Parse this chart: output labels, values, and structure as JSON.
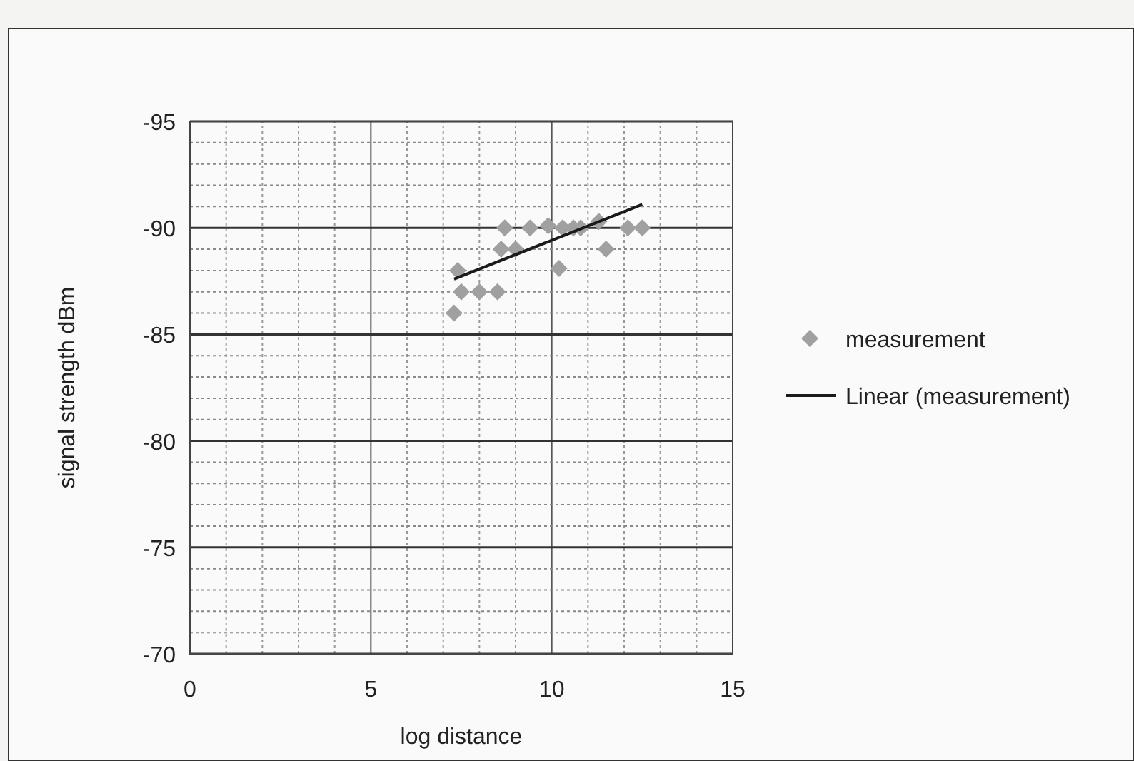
{
  "chart_data": {
    "type": "scatter",
    "xlabel": "log distance",
    "ylabel": "signal strength dBm",
    "xlim": [
      0,
      15
    ],
    "ylim": [
      -70,
      -95
    ],
    "xticks": [
      0,
      {
        "value": 1,
        "label": null
      },
      {
        "value": 2,
        "label": null
      },
      {
        "value": 3,
        "label": null
      },
      {
        "value": 4,
        "label": null
      },
      5,
      {
        "value": 6,
        "label": null
      },
      {
        "value": 7,
        "label": null
      },
      {
        "value": 8,
        "label": null
      },
      {
        "value": 9,
        "label": null
      },
      10,
      {
        "value": 11,
        "label": null
      },
      {
        "value": 12,
        "label": null
      },
      {
        "value": 13,
        "label": null
      },
      {
        "value": 14,
        "label": null
      },
      15
    ],
    "yticks": [
      -70,
      {
        "value": -71,
        "label": null
      },
      {
        "value": -72,
        "label": null
      },
      {
        "value": -73,
        "label": null
      },
      {
        "value": -74,
        "label": null
      },
      -75,
      {
        "value": -76,
        "label": null
      },
      {
        "value": -77,
        "label": null
      },
      {
        "value": -78,
        "label": null
      },
      {
        "value": -79,
        "label": null
      },
      -80,
      {
        "value": -81,
        "label": null
      },
      {
        "value": -82,
        "label": null
      },
      {
        "value": -83,
        "label": null
      },
      {
        "value": -84,
        "label": null
      },
      -85,
      {
        "value": -86,
        "label": null
      },
      {
        "value": -87,
        "label": null
      },
      {
        "value": -88,
        "label": null
      },
      {
        "value": -89,
        "label": null
      },
      -90,
      {
        "value": -91,
        "label": null
      },
      {
        "value": -92,
        "label": null
      },
      {
        "value": -93,
        "label": null
      },
      {
        "value": -94,
        "label": null
      },
      -95
    ],
    "grid": true,
    "legend": "right",
    "series": [
      {
        "name": "measurement",
        "marker": "diamond",
        "color": "#a0a0a0",
        "x": [
          7.3,
          7.4,
          7.5,
          8.0,
          8.5,
          8.6,
          9.0,
          8.7,
          9.4,
          9.9,
          10.2,
          10.3,
          10.6,
          10.8,
          11.3,
          11.5,
          12.1,
          12.5
        ],
        "values": [
          -86,
          -88,
          -87,
          -87,
          -87,
          -89,
          -89,
          -90,
          -90,
          -90.1,
          -88.1,
          -90,
          -90,
          -90,
          -90.3,
          -89,
          -90,
          -90
        ]
      },
      {
        "name": "Linear (measurement)",
        "type": "line",
        "marker": "none",
        "line_style": "solid",
        "color": "#1a1a1a",
        "x": [
          7.3,
          12.5
        ],
        "values": [
          -87.6,
          -91.1
        ]
      }
    ]
  }
}
